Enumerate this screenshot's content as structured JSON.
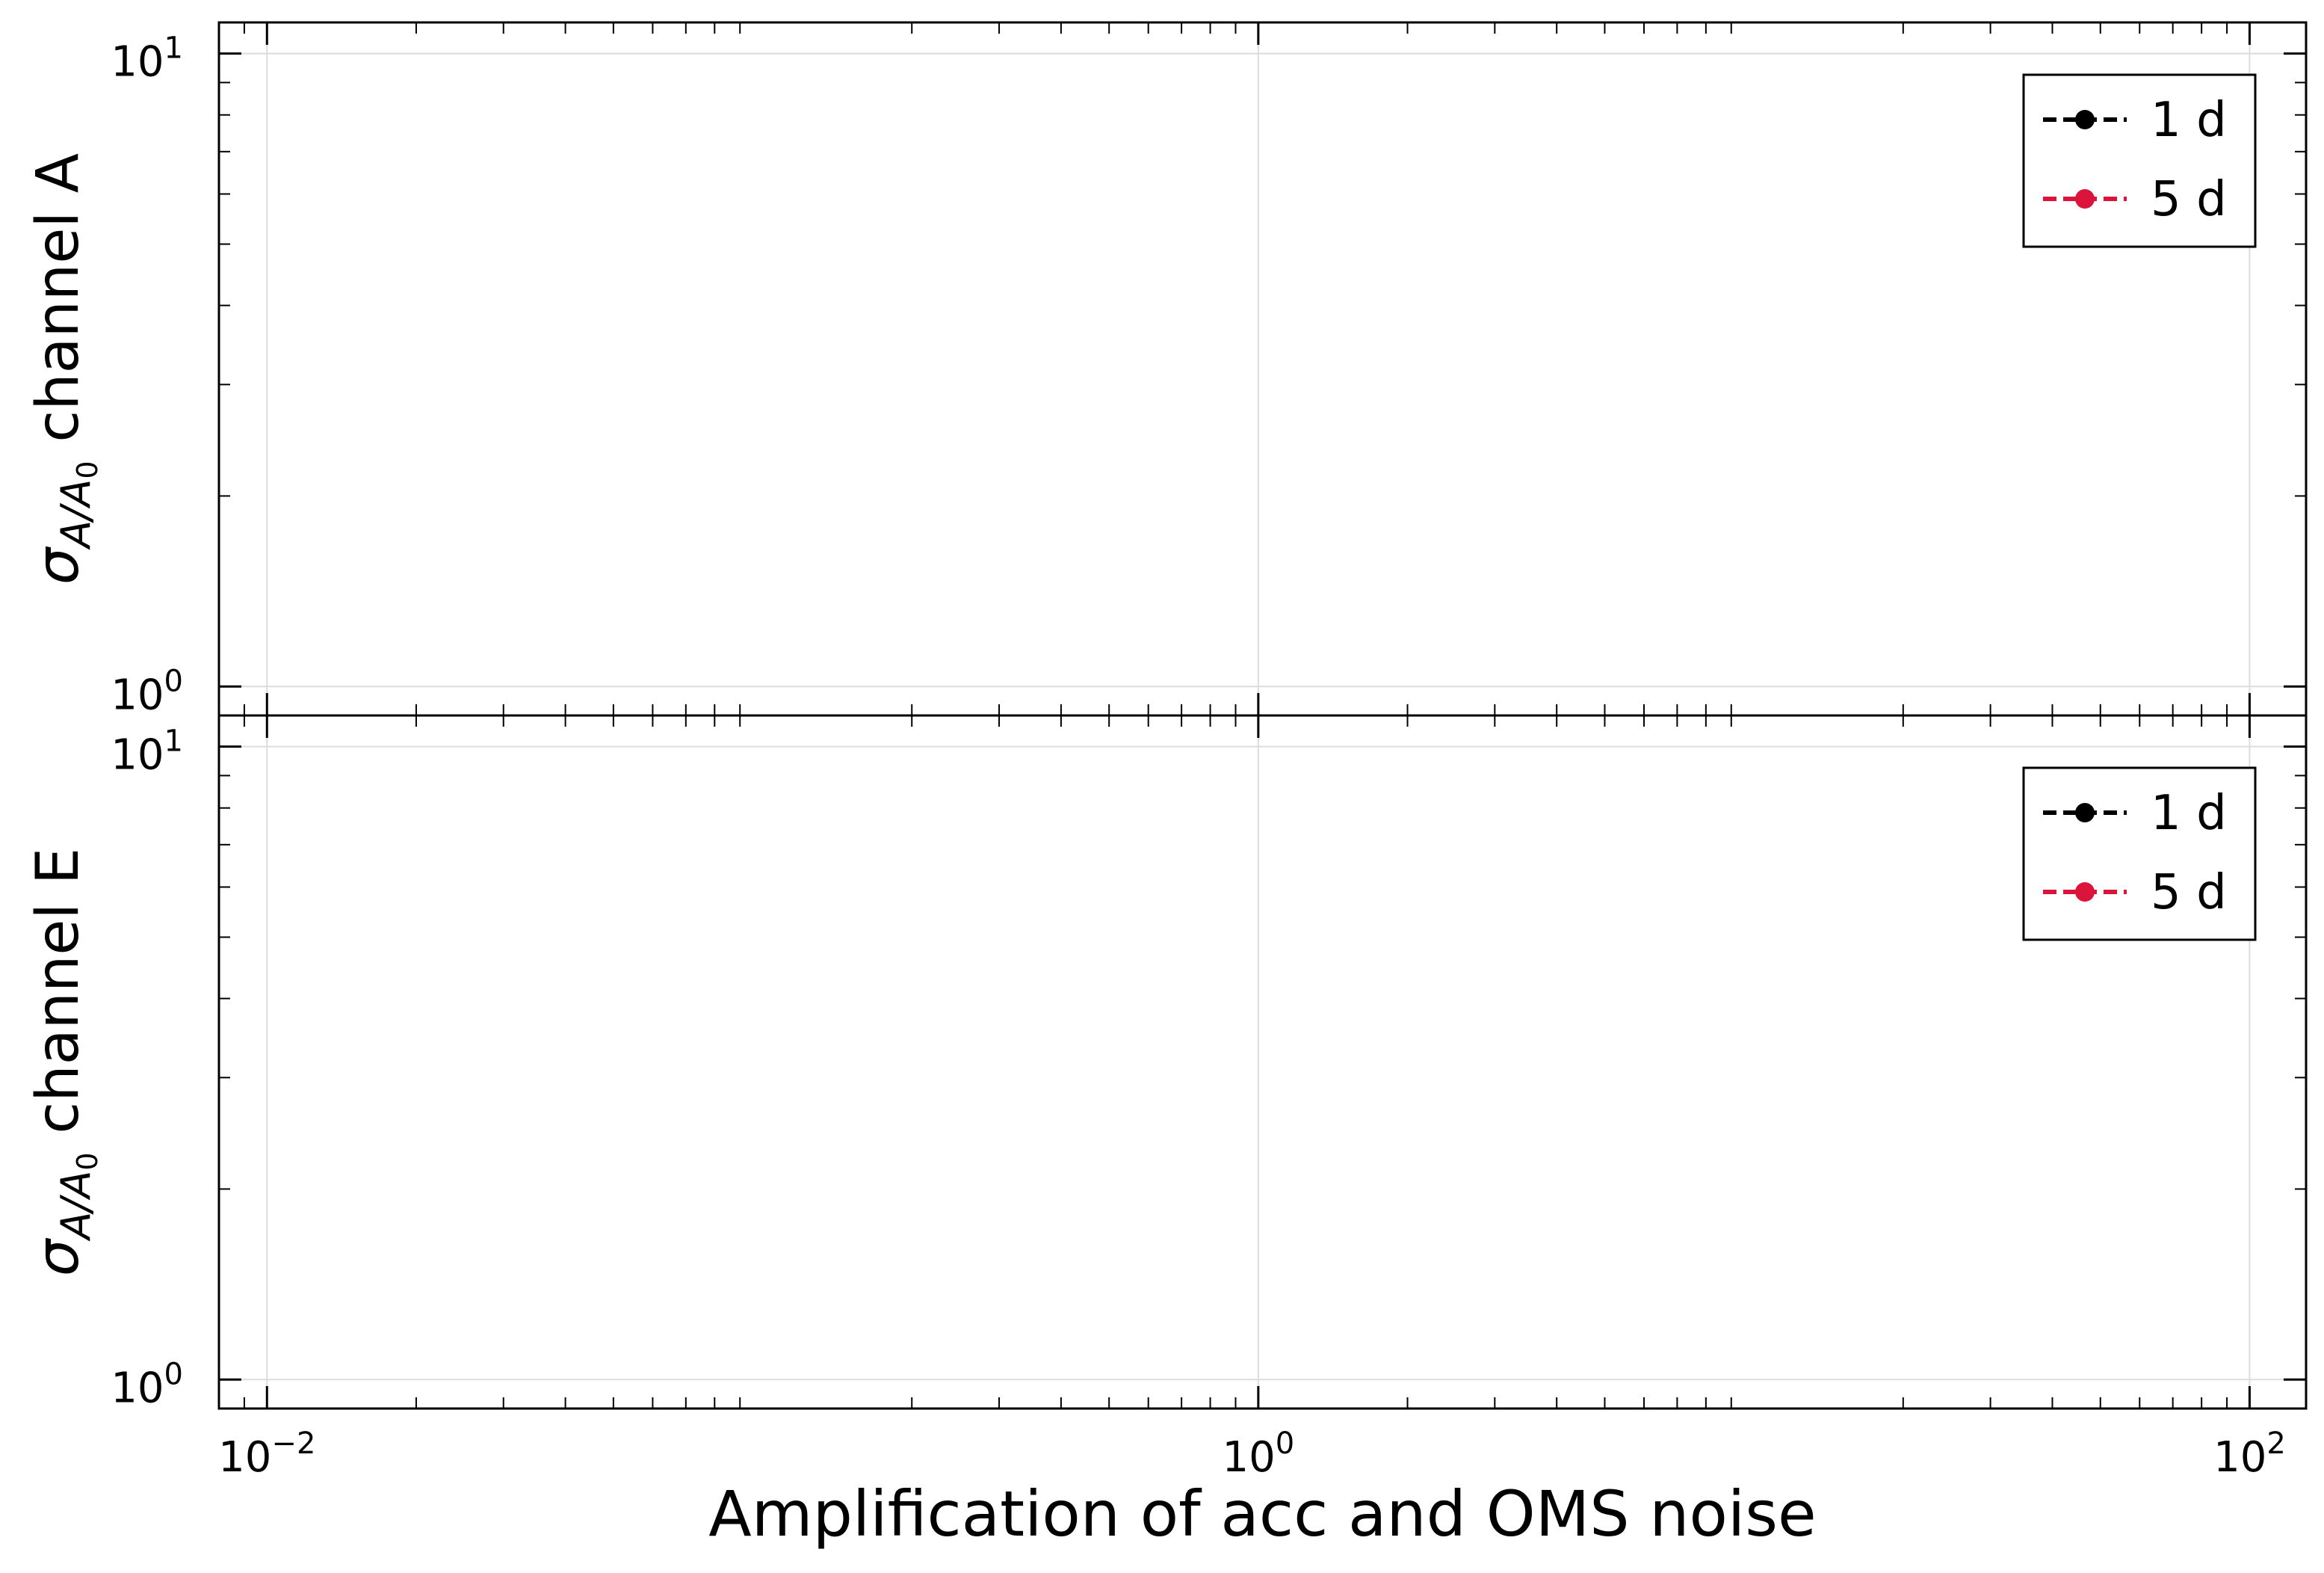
{
  "chart_data": [
    {
      "type": "line",
      "panel": "top",
      "title": "",
      "xlabel": "",
      "ylabel": {
        "sigma": "σ",
        "sub": "A/A",
        "subsub": "0",
        "suffix": " channel A"
      },
      "xscale": "log",
      "yscale": "log",
      "xlim": [
        0.008,
        130
      ],
      "ylim": [
        0.9,
        11.2
      ],
      "grid": true,
      "x_ticks": [
        {
          "value": 0.01,
          "base": "10",
          "exp": "−2"
        },
        {
          "value": 1,
          "base": "10",
          "exp": "0"
        },
        {
          "value": 100,
          "base": "10",
          "exp": "2"
        }
      ],
      "y_ticks": [
        {
          "value": 1,
          "base": "10",
          "exp": "0"
        },
        {
          "value": 10,
          "base": "10",
          "exp": "1"
        }
      ],
      "legend_position": "top-right",
      "series": [
        {
          "name": "1 d",
          "color": "#000000",
          "linestyle": "dashed",
          "marker": "circle",
          "x": [],
          "y": []
        },
        {
          "name": "5 d",
          "color": "#dc143c",
          "linestyle": "dashed",
          "marker": "circle",
          "x": [],
          "y": []
        }
      ]
    },
    {
      "type": "line",
      "panel": "bottom",
      "title": "",
      "xlabel": "Amplification of acc and OMS noise",
      "ylabel": {
        "sigma": "σ",
        "sub": "A/A",
        "subsub": "0",
        "suffix": " channel E"
      },
      "xscale": "log",
      "yscale": "log",
      "xlim": [
        0.008,
        130
      ],
      "ylim": [
        0.9,
        11.2
      ],
      "grid": true,
      "x_ticks": [
        {
          "value": 0.01,
          "base": "10",
          "exp": "−2"
        },
        {
          "value": 1,
          "base": "10",
          "exp": "0"
        },
        {
          "value": 100,
          "base": "10",
          "exp": "2"
        }
      ],
      "y_ticks": [
        {
          "value": 1,
          "base": "10",
          "exp": "0"
        },
        {
          "value": 10,
          "base": "10",
          "exp": "1"
        }
      ],
      "legend_position": "top-right",
      "series": [
        {
          "name": "1 d",
          "color": "#000000",
          "linestyle": "dashed",
          "marker": "circle",
          "x": [],
          "y": []
        },
        {
          "name": "5 d",
          "color": "#dc143c",
          "linestyle": "dashed",
          "marker": "circle",
          "x": [],
          "y": []
        }
      ]
    }
  ]
}
